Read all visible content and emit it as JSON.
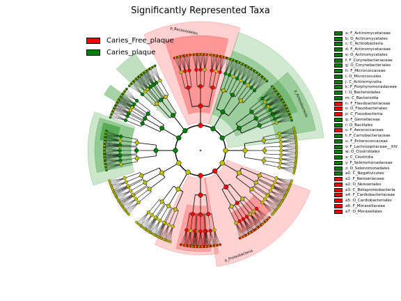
{
  "title": "Significantly Represented Taxa",
  "colors": {
    "caries_free": "#ff0000",
    "caries": "#008000",
    "node_ns": "#bfbf00"
  },
  "legend": [
    {
      "label": "Caries_Free_plaque",
      "color": "#ff0000"
    },
    {
      "label": "Caries_plaque",
      "color": "#008000"
    }
  ],
  "clades": [
    {
      "key": "a",
      "text": "a: F_Actinomycetaceae",
      "group": "caries"
    },
    {
      "key": "b",
      "text": "b: O_Actinomycetales",
      "group": "caries"
    },
    {
      "key": "c",
      "text": "c: C_Actinobacteria",
      "group": "caries"
    },
    {
      "key": "d",
      "text": "d: F_Actinomycetaceae",
      "group": "caries"
    },
    {
      "key": "e",
      "text": "e: O_Actinomycetales",
      "group": "caries"
    },
    {
      "key": "f",
      "text": "f: F_Corynebacteriaceae",
      "group": "caries"
    },
    {
      "key": "g",
      "text": "g: O_Corynebacteriales",
      "group": "caries"
    },
    {
      "key": "h",
      "text": "h: F_Micrococcaceae",
      "group": "caries"
    },
    {
      "key": "i",
      "text": "i: O_Micrococcales",
      "group": "caries"
    },
    {
      "key": "j",
      "text": "j: C_Actinomycetia",
      "group": "caries"
    },
    {
      "key": "k",
      "text": "k: F_Porphyromonadaceae",
      "group": "caries"
    },
    {
      "key": "l",
      "text": "l: O_Bacteroidales",
      "group": "caries"
    },
    {
      "key": "m",
      "text": "m: C_Bacteroidia",
      "group": "caries"
    },
    {
      "key": "n",
      "text": "n: F_Flavobacteriaceae",
      "group": "caries_free"
    },
    {
      "key": "o",
      "text": "o: O_Flavobacteriales",
      "group": "caries_free"
    },
    {
      "key": "p",
      "text": "p: C_Flavobacteriia",
      "group": "caries_free"
    },
    {
      "key": "q",
      "text": "q: F_Gemellaceae",
      "group": "caries"
    },
    {
      "key": "r",
      "text": "r: O_Bacillales",
      "group": "caries"
    },
    {
      "key": "s",
      "text": "s: F_Aerococcaceae",
      "group": "caries_free"
    },
    {
      "key": "t",
      "text": "t: F_Carnobacteriaceae",
      "group": "caries"
    },
    {
      "key": "u",
      "text": "u: F_Enterococcaceae",
      "group": "caries"
    },
    {
      "key": "v",
      "text": "v: F_Lachnospiraceae__XIV",
      "group": "caries"
    },
    {
      "key": "w",
      "text": "w: O_Clostridiales",
      "group": "caries"
    },
    {
      "key": "x",
      "text": "x: C_Clostridia",
      "group": "caries"
    },
    {
      "key": "y",
      "text": "y: F_Selenomonadaceae",
      "group": "caries"
    },
    {
      "key": "z",
      "text": "z: O_Selenomonadales",
      "group": "caries"
    },
    {
      "key": "a0",
      "text": "a0: C_Negativicutes",
      "group": "caries"
    },
    {
      "key": "a1",
      "text": "a1: F_Neisseriaceae",
      "group": "caries_free"
    },
    {
      "key": "a2",
      "text": "a2: O_Neisseriales",
      "group": "caries_free"
    },
    {
      "key": "a3",
      "text": "a3: C_Betaproteobacteria",
      "group": "caries_free"
    },
    {
      "key": "a4",
      "text": "a4: F_Cardiobacteriaceae",
      "group": "caries_free"
    },
    {
      "key": "a5",
      "text": "a5: O_Cardiobacteriales",
      "group": "caries_free"
    },
    {
      "key": "a6",
      "text": "a6: F_Moraxellaceae",
      "group": "caries_free"
    },
    {
      "key": "a7",
      "text": "a7: O_Moraxellales",
      "group": "caries_free"
    }
  ],
  "phyla": [
    {
      "label": "p_Bacteroidetes",
      "group": "caries_free"
    },
    {
      "label": "p_Actinobacteria",
      "group": "caries"
    },
    {
      "label": "p_Proteobacteria",
      "group": "caries_free"
    }
  ]
}
